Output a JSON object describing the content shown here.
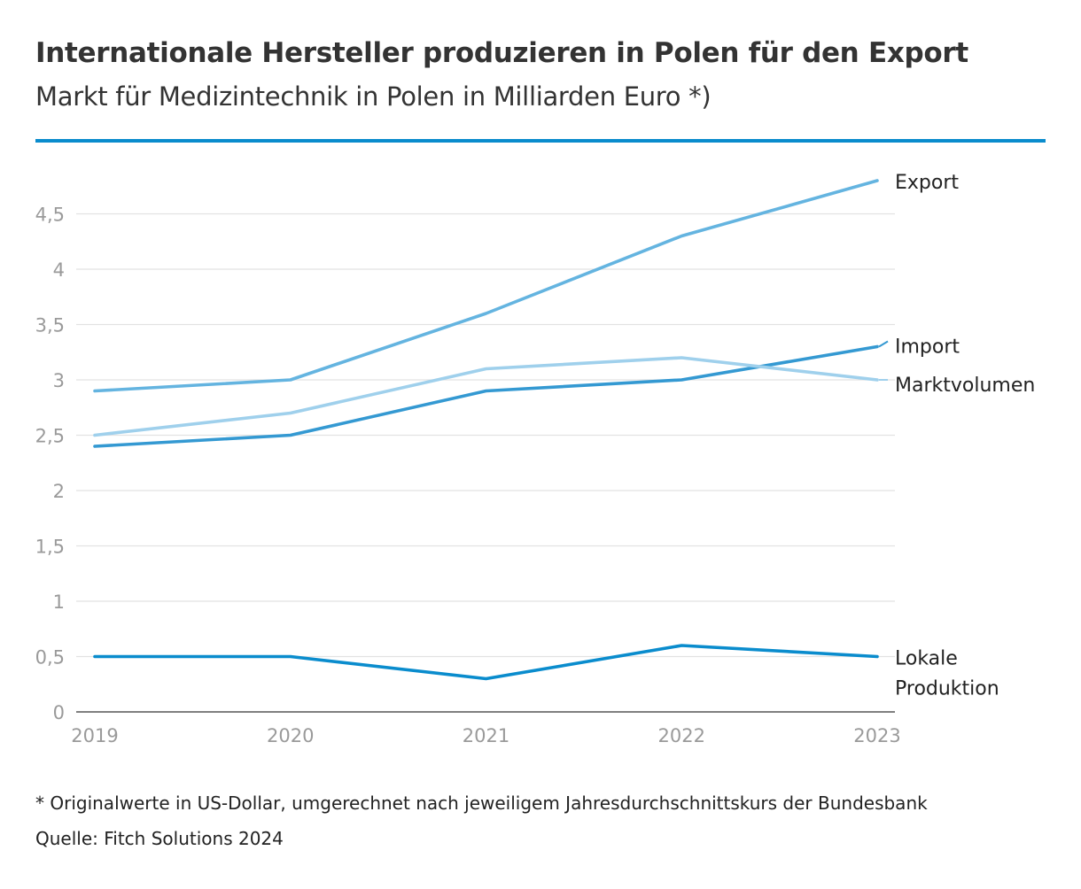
{
  "header": {
    "title": "Internationale Hersteller produzieren in Polen für den Export",
    "subtitle": "Markt für Medizintechnik in Polen in Milliarden Euro *)"
  },
  "colors": {
    "accent": "#0a8ccd",
    "grid": "#e2e2e2",
    "axis": "#555555",
    "tick_text": "#9a9a9a",
    "label_text": "#222222"
  },
  "chart_data": {
    "type": "line",
    "title": "Internationale Hersteller produzieren in Polen für den Export",
    "subtitle": "Markt für Medizintechnik in Polen in Milliarden Euro *)",
    "xlabel": "",
    "ylabel": "",
    "categories": [
      "2019",
      "2020",
      "2021",
      "2022",
      "2023"
    ],
    "ylim": [
      0,
      5
    ],
    "yticks": [
      0,
      0.5,
      1,
      1.5,
      2,
      2.5,
      3,
      3.5,
      4,
      4.5
    ],
    "ytick_labels": [
      "0",
      "0,5",
      "1",
      "1,5",
      "2",
      "2,5",
      "3",
      "3,5",
      "4",
      "4,5"
    ],
    "grid": true,
    "legend": "direct labels at line ends (right)",
    "series": [
      {
        "name": "Export",
        "label_lines": [
          "Export"
        ],
        "color": "#64b4e0",
        "values": [
          2.9,
          3.0,
          3.6,
          4.3,
          4.8
        ]
      },
      {
        "name": "Import",
        "label_lines": [
          "Import"
        ],
        "color": "#3499d2",
        "values": [
          2.4,
          2.5,
          2.9,
          3.0,
          3.3
        ]
      },
      {
        "name": "Marktvolumen",
        "label_lines": [
          "Marktvolumen"
        ],
        "color": "#9fd0ec",
        "values": [
          2.5,
          2.7,
          3.1,
          3.2,
          3.0
        ]
      },
      {
        "name": "Lokale Produktion",
        "label_lines": [
          "Lokale",
          "Produktion"
        ],
        "color": "#0a8ccd",
        "values": [
          0.5,
          0.5,
          0.3,
          0.6,
          0.5
        ]
      }
    ]
  },
  "footer": {
    "footnote": "* Originalwerte in US-Dollar, umgerechnet nach jeweiligem Jahresdurchschnittskurs der Bundesbank",
    "source": "Quelle: Fitch Solutions 2024"
  }
}
